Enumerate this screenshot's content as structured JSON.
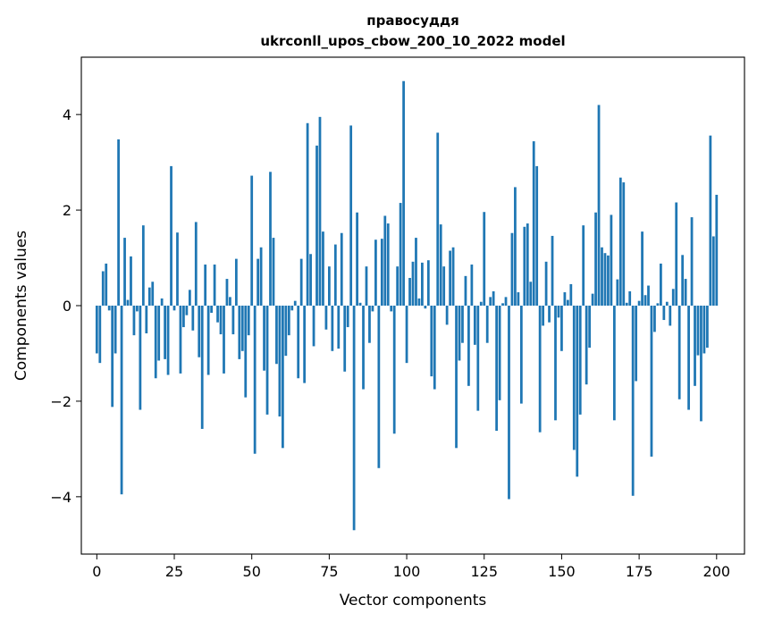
{
  "chart_data": {
    "type": "bar",
    "title": "правосуддя",
    "subtitle": "ukrconll_upos_cbow_200_10_2022 model",
    "xlabel": "Vector components",
    "ylabel": "Components values",
    "xlim": [
      -5,
      209
    ],
    "ylim": [
      -5.2,
      5.2
    ],
    "xticks": [
      0,
      25,
      50,
      75,
      100,
      125,
      150,
      175,
      200
    ],
    "yticks": [
      -4,
      -2,
      0,
      2,
      4
    ],
    "bar_color": "#1f77b4",
    "grid": false,
    "values": [
      -1.0,
      -1.2,
      0.72,
      0.88,
      -0.1,
      -2.12,
      -1.0,
      3.48,
      -3.95,
      1.42,
      0.12,
      1.03,
      -0.62,
      -0.12,
      -2.18,
      1.68,
      -0.58,
      0.38,
      0.5,
      -1.52,
      -1.15,
      0.15,
      -1.12,
      -1.45,
      2.92,
      -0.1,
      1.53,
      -1.42,
      -0.45,
      -0.2,
      0.33,
      -0.52,
      1.75,
      -1.08,
      -2.58,
      0.86,
      -1.45,
      -0.15,
      0.86,
      -0.35,
      -0.6,
      -1.42,
      0.56,
      0.18,
      -0.6,
      0.98,
      -1.12,
      -0.95,
      -1.92,
      -0.62,
      2.72,
      -3.1,
      0.98,
      1.22,
      -1.36,
      -2.28,
      2.8,
      1.42,
      -1.22,
      -2.32,
      -2.98,
      -1.05,
      -0.62,
      -0.1,
      0.1,
      -1.52,
      0.98,
      -1.62,
      3.82,
      1.08,
      -0.85,
      3.35,
      3.95,
      1.55,
      -0.5,
      0.82,
      -0.95,
      1.28,
      -0.9,
      1.52,
      -1.38,
      -0.45,
      3.77,
      -4.7,
      1.95,
      0.06,
      -1.75,
      0.82,
      -0.78,
      -0.12,
      1.38,
      -3.4,
      1.4,
      1.88,
      1.72,
      -0.12,
      -2.68,
      0.82,
      2.15,
      4.7,
      -1.2,
      0.58,
      0.92,
      1.42,
      0.15,
      0.9,
      -0.06,
      0.95,
      -1.48,
      -1.75,
      3.62,
      1.7,
      0.82,
      -0.4,
      1.15,
      1.22,
      -2.98,
      -1.15,
      -0.78,
      0.62,
      -1.68,
      0.86,
      -0.82,
      -2.2,
      0.08,
      1.96,
      -0.78,
      0.18,
      0.3,
      -2.62,
      -1.98,
      0.05,
      0.18,
      -4.05,
      1.52,
      2.48,
      0.28,
      -2.05,
      1.65,
      1.72,
      0.5,
      3.44,
      2.92,
      -2.65,
      -0.42,
      0.92,
      -0.35,
      1.46,
      -2.4,
      -0.25,
      -0.95,
      0.28,
      0.12,
      0.45,
      -3.02,
      -3.58,
      -2.28,
      1.68,
      -1.65,
      -0.88,
      0.25,
      1.95,
      4.2,
      1.22,
      1.1,
      1.05,
      1.9,
      -2.4,
      0.55,
      2.68,
      2.58,
      0.06,
      0.3,
      -3.98,
      -1.58,
      0.1,
      1.55,
      0.22,
      0.42,
      -3.16,
      -0.55,
      0.05,
      0.88,
      -0.3,
      0.08,
      -0.42,
      0.35,
      2.16,
      -1.96,
      1.06,
      0.56,
      -2.18,
      1.85,
      -1.68,
      -1.04,
      -2.42,
      -1.0,
      -0.88,
      3.56,
      1.45,
      2.32
    ]
  }
}
